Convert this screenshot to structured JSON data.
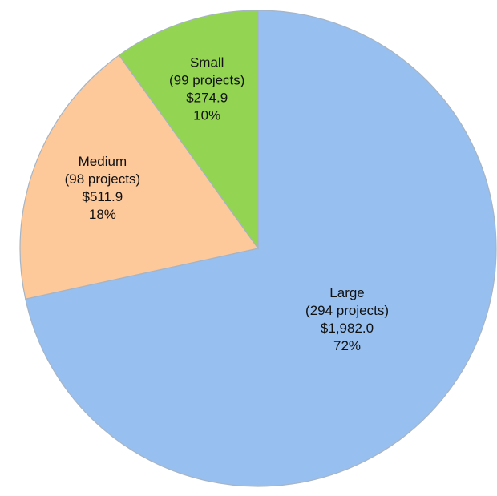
{
  "chart_data": {
    "type": "pie",
    "categories": [
      "Large",
      "Medium",
      "Small"
    ],
    "project_labels": [
      "(294 projects)",
      "(98 projects)",
      "(99 projects)"
    ],
    "values": [
      1982.0,
      511.9,
      274.9
    ],
    "value_labels": [
      "$1,982.0",
      "$511.9",
      "$274.9"
    ],
    "shares": [
      72,
      18,
      10
    ],
    "share_labels": [
      "72%",
      "18%",
      "10%"
    ],
    "colors": [
      "#97bff0",
      "#fdc99b",
      "#93d452"
    ],
    "start": "top",
    "direction": "clockwise"
  }
}
